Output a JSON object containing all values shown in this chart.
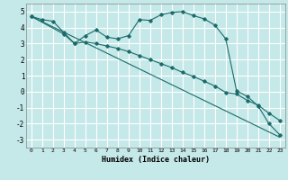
{
  "xlabel": "Humidex (Indice chaleur)",
  "background_color": "#c5e8e8",
  "grid_color": "#ffffff",
  "line_color": "#1a6b6b",
  "xlim": [
    -0.5,
    23.5
  ],
  "ylim": [
    -3.5,
    5.5
  ],
  "yticks": [
    -3,
    -2,
    -1,
    0,
    1,
    2,
    3,
    4,
    5
  ],
  "xticks": [
    0,
    1,
    2,
    3,
    4,
    5,
    6,
    7,
    8,
    9,
    10,
    11,
    12,
    13,
    14,
    15,
    16,
    17,
    18,
    19,
    20,
    21,
    22,
    23
  ],
  "line1_x": [
    0,
    1,
    2,
    3,
    4,
    5,
    6,
    7,
    8,
    9,
    10,
    11,
    12,
    13,
    14,
    15,
    16,
    17,
    18,
    19,
    20,
    21,
    22,
    23
  ],
  "line1_y": [
    4.7,
    4.5,
    4.4,
    3.7,
    3.0,
    3.5,
    3.85,
    3.4,
    3.3,
    3.5,
    4.5,
    4.45,
    4.8,
    4.95,
    5.0,
    4.75,
    4.55,
    4.15,
    3.3,
    0.05,
    -0.3,
    -0.9,
    -2.0,
    -2.7
  ],
  "line2_x": [
    0,
    23
  ],
  "line2_y": [
    4.7,
    -2.85
  ],
  "line3_x": [
    0,
    3,
    4,
    5,
    6,
    7,
    8,
    9,
    10,
    11,
    12,
    13,
    14,
    15,
    16,
    17,
    18,
    19,
    20,
    21,
    22,
    23
  ],
  "line3_y": [
    4.7,
    3.6,
    3.0,
    3.1,
    3.0,
    2.85,
    2.7,
    2.5,
    2.25,
    2.0,
    1.75,
    1.5,
    1.2,
    0.95,
    0.65,
    0.35,
    -0.05,
    -0.15,
    -0.55,
    -0.85,
    -1.35,
    -1.8
  ]
}
